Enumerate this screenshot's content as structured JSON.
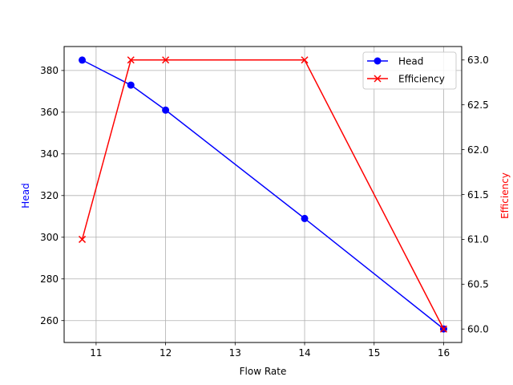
{
  "chart_data": {
    "type": "line",
    "title": "",
    "xlabel": "Flow Rate",
    "ylabel": "Head",
    "y2label": "Efficiency",
    "x": [
      10.8,
      11.5,
      12,
      14,
      16
    ],
    "series": [
      {
        "name": "Head",
        "axis": "left",
        "color": "#0000ff",
        "marker": "o",
        "values": [
          385,
          373,
          361,
          309,
          256
        ]
      },
      {
        "name": "Efficiency",
        "axis": "right",
        "color": "#ff0000",
        "marker": "x",
        "values": [
          61.0,
          63.0,
          63.0,
          63.0,
          60.0
        ]
      }
    ],
    "xlim": [
      10.54,
      16.26
    ],
    "ylim": [
      249.5,
      391.5
    ],
    "y2lim": [
      59.85,
      63.15
    ],
    "xticks": [
      11,
      12,
      13,
      14,
      15,
      16
    ],
    "yticks": [
      260,
      280,
      300,
      320,
      340,
      360,
      380
    ],
    "y2ticks": [
      60.0,
      60.5,
      61.0,
      61.5,
      62.0,
      62.5,
      63.0
    ],
    "grid": true,
    "legend_position": "upper right"
  },
  "labels": {
    "xlabel": "Flow Rate",
    "ylabel": "Head",
    "y2label": "Efficiency",
    "legend_head": "Head",
    "legend_eff": "Efficiency"
  }
}
